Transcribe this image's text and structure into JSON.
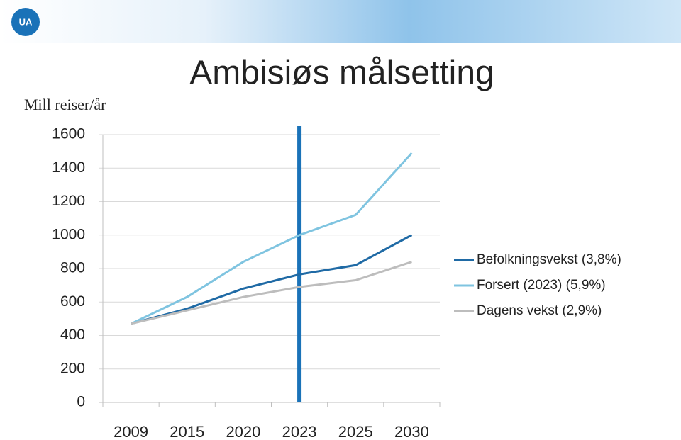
{
  "header": {
    "logo": "UA"
  },
  "chart_data": {
    "type": "line",
    "title": "Ambisiøs målsetting",
    "y_label": "Mill reiser/år",
    "categories": [
      "2009",
      "2015",
      "2020",
      "2023",
      "2025",
      "2030"
    ],
    "series": [
      {
        "name": "Befolkningsvekst (3,8%)",
        "color": "#1f6aa5",
        "values": [
          470,
          560,
          680,
          765,
          820,
          1000
        ]
      },
      {
        "name": "Forsert (2023) (5,9%)",
        "color": "#7fc4e0",
        "values": [
          470,
          630,
          840,
          1000,
          1120,
          1490
        ]
      },
      {
        "name": "Dagens vekst (2,9%)",
        "color": "#bdbdbd",
        "values": [
          470,
          550,
          630,
          690,
          730,
          840
        ]
      }
    ],
    "ylim": [
      0,
      1600
    ],
    "yticks": [
      0,
      200,
      400,
      600,
      800,
      1000,
      1200,
      1400,
      1600
    ],
    "grid": true,
    "legend": "right",
    "vline": {
      "category": 3,
      "color": "#1a72b8"
    }
  }
}
